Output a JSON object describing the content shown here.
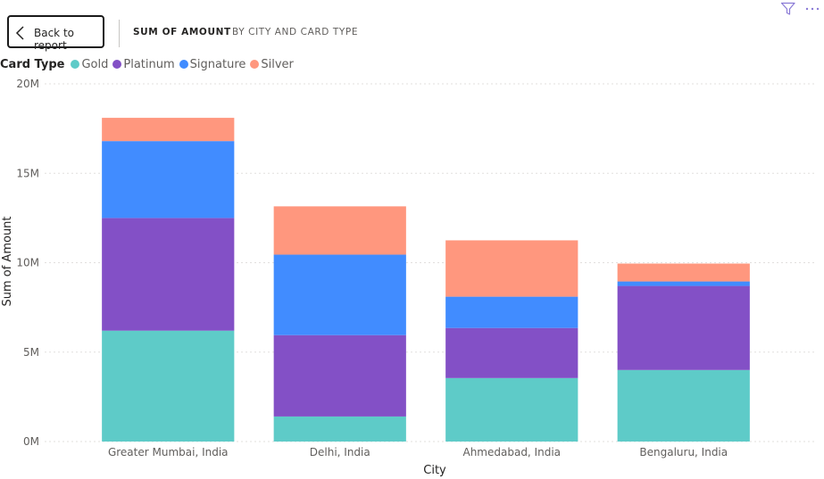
{
  "header": {
    "back_label": "Back to report",
    "title_primary": "SUM OF AMOUNT",
    "title_secondary": "BY CITY AND CARD TYPE"
  },
  "legend": {
    "title": "Card Type",
    "items": [
      {
        "label": "Gold",
        "color": "#5ECBC8"
      },
      {
        "label": "Platinum",
        "color": "#8350C6"
      },
      {
        "label": "Signature",
        "color": "#418CFF"
      },
      {
        "label": "Silver",
        "color": "#FF977E"
      }
    ]
  },
  "icons": [
    "filter-icon",
    "more-options-icon",
    "chevron-left-icon"
  ],
  "chart_data": {
    "type": "bar",
    "stacked": true,
    "title": "SUM OF AMOUNT BY CITY AND CARD TYPE",
    "xlabel": "City",
    "ylabel": "Sum of Amount",
    "ylim": [
      0,
      20000000
    ],
    "yticks": [
      {
        "value": 0,
        "label": "0M"
      },
      {
        "value": 5000000,
        "label": "5M"
      },
      {
        "value": 10000000,
        "label": "10M"
      },
      {
        "value": 15000000,
        "label": "15M"
      },
      {
        "value": 20000000,
        "label": "20M"
      }
    ],
    "grid": true,
    "legend_position": "top-left",
    "categories": [
      "Greater Mumbai, India",
      "Delhi, India",
      "Ahmedabad, India",
      "Bengaluru, India"
    ],
    "series": [
      {
        "name": "Gold",
        "color": "#5ECBC8",
        "values": [
          6200000,
          1400000,
          3550000,
          4000000
        ]
      },
      {
        "name": "Platinum",
        "color": "#8350C6",
        "values": [
          6300000,
          4550000,
          2800000,
          4700000
        ]
      },
      {
        "name": "Signature",
        "color": "#418CFF",
        "values": [
          4300000,
          4500000,
          1750000,
          250000
        ]
      },
      {
        "name": "Silver",
        "color": "#FF977E",
        "values": [
          1300000,
          2700000,
          3150000,
          1000000
        ]
      }
    ]
  }
}
